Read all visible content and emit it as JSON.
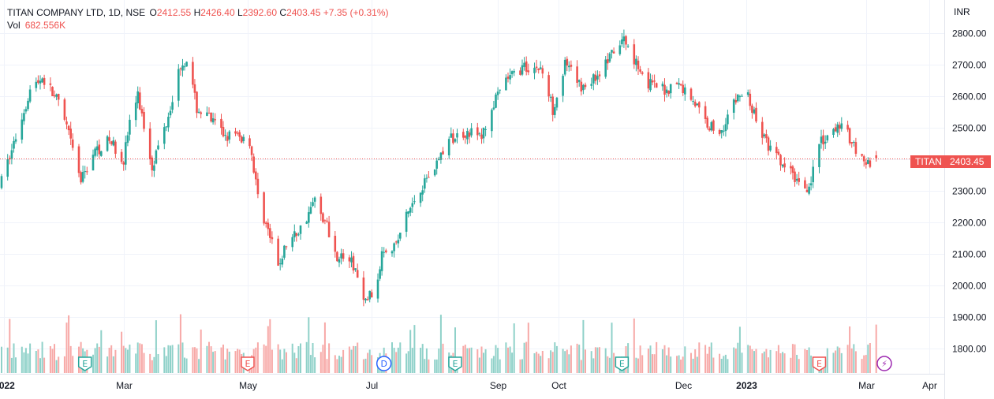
{
  "legend": {
    "symbol": "TITAN COMPANY LTD, 1D, NSE",
    "open_label": "O",
    "open": "2412.55",
    "high_label": "H",
    "high": "2426.40",
    "low_label": "L",
    "low": "2392.60",
    "close_label": "C",
    "close": "2403.45",
    "change": "+7.35 (+0.31%)",
    "vol_label": "Vol",
    "volume": "682.556K"
  },
  "currency": "INR",
  "price_tag": {
    "ticker": "TITAN",
    "value": "2403.45"
  },
  "colors": {
    "up": "#26a69a",
    "down": "#ef5350",
    "vol_up": "#8fd1c9",
    "vol_down": "#f7a9a7",
    "grid": "#f0f3fa"
  },
  "chart_data": {
    "type": "candlestick",
    "title": "TITAN COMPANY LTD, 1D, NSE",
    "ylabel": "INR",
    "y_ticks": [
      "1800.00",
      "1900.00",
      "2000.00",
      "2100.00",
      "2200.00",
      "2300.00",
      "2400.00",
      "2500.00",
      "2600.00",
      "2700.00",
      "2800.00"
    ],
    "ylim": [
      1730,
      2830
    ],
    "x_ticks": [
      {
        "label": "2022",
        "date": "2022-01-01",
        "bold": true
      },
      {
        "label": "Mar",
        "date": "2022-03-01"
      },
      {
        "label": "May",
        "date": "2022-05-01"
      },
      {
        "label": "Jul",
        "date": "2022-07-01"
      },
      {
        "label": "Sep",
        "date": "2022-09-01"
      },
      {
        "label": "Oct",
        "date": "2022-10-01"
      },
      {
        "label": "Dec",
        "date": "2022-12-01"
      },
      {
        "label": "2023",
        "date": "2023-01-01",
        "bold": true
      },
      {
        "label": "Mar",
        "date": "2023-03-01"
      },
      {
        "label": "Apr",
        "date": "2023-04-01"
      }
    ],
    "xlim": [
      "2021-12-31",
      "2023-04-05"
    ],
    "last_close": 2403.45,
    "anchors": [
      [
        "2021-12-31",
        2330
      ],
      [
        "2022-01-07",
        2470
      ],
      [
        "2022-01-14",
        2620
      ],
      [
        "2022-01-20",
        2660
      ],
      [
        "2022-01-27",
        2590
      ],
      [
        "2022-02-01",
        2500
      ],
      [
        "2022-02-08",
        2330
      ],
      [
        "2022-02-14",
        2420
      ],
      [
        "2022-02-22",
        2460
      ],
      [
        "2022-03-01",
        2400
      ],
      [
        "2022-03-04",
        2520
      ],
      [
        "2022-03-08",
        2600
      ],
      [
        "2022-03-15",
        2380
      ],
      [
        "2022-03-22",
        2520
      ],
      [
        "2022-03-29",
        2700
      ],
      [
        "2022-04-01",
        2720
      ],
      [
        "2022-04-06",
        2560
      ],
      [
        "2022-04-12",
        2530
      ],
      [
        "2022-04-19",
        2480
      ],
      [
        "2022-04-26",
        2470
      ],
      [
        "2022-05-02",
        2460
      ],
      [
        "2022-05-06",
        2280
      ],
      [
        "2022-05-12",
        2150
      ],
      [
        "2022-05-16",
        2060
      ],
      [
        "2022-05-20",
        2130
      ],
      [
        "2022-05-27",
        2180
      ],
      [
        "2022-06-03",
        2270
      ],
      [
        "2022-06-09",
        2190
      ],
      [
        "2022-06-13",
        2100
      ],
      [
        "2022-06-20",
        2080
      ],
      [
        "2022-06-23",
        2050
      ],
      [
        "2022-06-27",
        1940
      ],
      [
        "2022-06-30",
        1970
      ],
      [
        "2022-07-04",
        2000
      ],
      [
        "2022-07-06",
        2120
      ],
      [
        "2022-07-13",
        2130
      ],
      [
        "2022-07-18",
        2220
      ],
      [
        "2022-07-25",
        2310
      ],
      [
        "2022-08-01",
        2380
      ],
      [
        "2022-08-08",
        2460
      ],
      [
        "2022-08-17",
        2490
      ],
      [
        "2022-08-24",
        2470
      ],
      [
        "2022-08-29",
        2560
      ],
      [
        "2022-09-05",
        2650
      ],
      [
        "2022-09-13",
        2690
      ],
      [
        "2022-09-22",
        2690
      ],
      [
        "2022-09-28",
        2560
      ],
      [
        "2022-10-04",
        2700
      ],
      [
        "2022-10-12",
        2630
      ],
      [
        "2022-10-19",
        2660
      ],
      [
        "2022-10-27",
        2730
      ],
      [
        "2022-11-02",
        2780
      ],
      [
        "2022-11-07",
        2720
      ],
      [
        "2022-11-14",
        2640
      ],
      [
        "2022-11-22",
        2620
      ],
      [
        "2022-11-28",
        2640
      ],
      [
        "2022-12-05",
        2600
      ],
      [
        "2022-12-12",
        2520
      ],
      [
        "2022-12-19",
        2480
      ],
      [
        "2022-12-23",
        2540
      ],
      [
        "2022-12-28",
        2600
      ],
      [
        "2023-01-02",
        2600
      ],
      [
        "2023-01-06",
        2520
      ],
      [
        "2023-01-12",
        2440
      ],
      [
        "2023-01-19",
        2380
      ],
      [
        "2023-01-27",
        2330
      ],
      [
        "2023-02-01",
        2310
      ],
      [
        "2023-02-06",
        2450
      ],
      [
        "2023-02-10",
        2460
      ],
      [
        "2023-02-16",
        2510
      ],
      [
        "2023-02-22",
        2460
      ],
      [
        "2023-02-27",
        2400
      ],
      [
        "2023-03-03",
        2380
      ],
      [
        "2023-03-06",
        2403.45
      ]
    ],
    "volume_ylim": [
      0,
      1000
    ],
    "events": [
      {
        "type": "earnings",
        "label": "E",
        "date": "2022-02-10",
        "color": "#26a69a"
      },
      {
        "type": "earnings",
        "label": "E",
        "date": "2022-05-01",
        "color": "#ef5350"
      },
      {
        "type": "dividend",
        "label": "D",
        "date": "2022-07-07",
        "color": "#2962ff"
      },
      {
        "type": "earnings",
        "label": "E",
        "date": "2022-08-11",
        "color": "#26a69a"
      },
      {
        "type": "earnings",
        "label": "E",
        "date": "2022-11-01",
        "color": "#26a69a"
      },
      {
        "type": "earnings",
        "label": "E",
        "date": "2023-02-06",
        "color": "#ef5350"
      },
      {
        "type": "split",
        "label": "⚡",
        "date": "2023-03-10",
        "color": "#9c27b0"
      }
    ]
  }
}
